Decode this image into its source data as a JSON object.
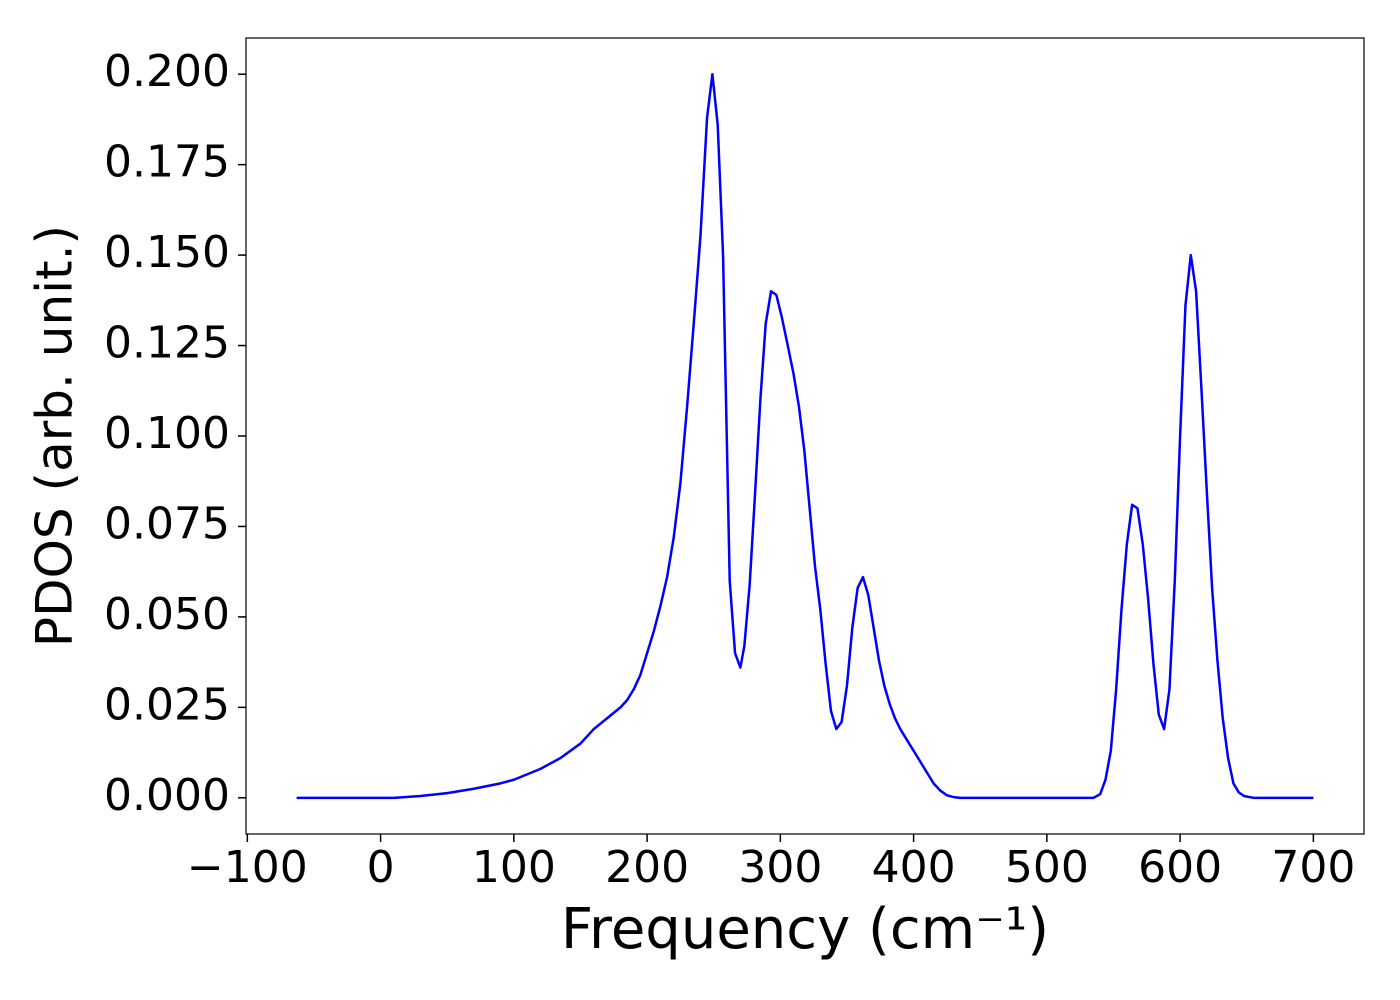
{
  "chart_data": {
    "type": "line",
    "xlabel": "Frequency (cm⁻¹)",
    "ylabel": "PDOS (arb. unit.)",
    "series": [
      {
        "color": "#0000ff",
        "x": [
          -63,
          10,
          30,
          50,
          70,
          90,
          100,
          120,
          135,
          150,
          160,
          170,
          180,
          185,
          190,
          195,
          200,
          205,
          210,
          215,
          220,
          225,
          230,
          235,
          240,
          245,
          249,
          253,
          257,
          262,
          266,
          270,
          273,
          277,
          281,
          285,
          289,
          293,
          297,
          301,
          305,
          310,
          314,
          318,
          322,
          326,
          330,
          334,
          338,
          342,
          346,
          350,
          354,
          358,
          362,
          366,
          370,
          374,
          378,
          382,
          386,
          390,
          395,
          400,
          405,
          410,
          415,
          420,
          425,
          430,
          435,
          535,
          540,
          544,
          548,
          552,
          556,
          560,
          564,
          568,
          572,
          576,
          580,
          584,
          588,
          592,
          596,
          600,
          604,
          608,
          612,
          616,
          620,
          624,
          628,
          632,
          636,
          640,
          644,
          648,
          655,
          700
        ],
        "values": [
          0,
          0,
          0.0005,
          0.0013,
          0.0025,
          0.004,
          0.005,
          0.008,
          0.011,
          0.015,
          0.019,
          0.022,
          0.025,
          0.027,
          0.03,
          0.034,
          0.04,
          0.046,
          0.053,
          0.061,
          0.072,
          0.087,
          0.108,
          0.131,
          0.155,
          0.188,
          0.2,
          0.186,
          0.15,
          0.06,
          0.04,
          0.036,
          0.042,
          0.059,
          0.084,
          0.11,
          0.131,
          0.14,
          0.139,
          0.133,
          0.126,
          0.117,
          0.108,
          0.096,
          0.08,
          0.064,
          0.052,
          0.037,
          0.024,
          0.019,
          0.021,
          0.031,
          0.047,
          0.058,
          0.061,
          0.056,
          0.047,
          0.038,
          0.031,
          0.026,
          0.022,
          0.019,
          0.016,
          0.013,
          0.01,
          0.007,
          0.004,
          0.002,
          0.0007,
          0.0002,
          0,
          0,
          0.001,
          0.005,
          0.013,
          0.03,
          0.052,
          0.07,
          0.081,
          0.08,
          0.07,
          0.055,
          0.037,
          0.023,
          0.019,
          0.03,
          0.06,
          0.1,
          0.136,
          0.15,
          0.14,
          0.113,
          0.085,
          0.058,
          0.038,
          0.022,
          0.011,
          0.004,
          0.0015,
          0.0005,
          0,
          0
        ]
      }
    ],
    "xlim": [
      -101,
      738
    ],
    "ylim": [
      -0.01,
      0.21
    ],
    "xticks": [
      {
        "value": -100,
        "label": "−100"
      },
      0,
      100,
      200,
      300,
      400,
      500,
      600,
      700
    ],
    "yticks": [
      {
        "value": 0,
        "label": "0.000"
      },
      {
        "value": 0.025,
        "label": "0.025"
      },
      {
        "value": 0.05,
        "label": "0.050"
      },
      {
        "value": 0.075,
        "label": "0.075"
      },
      {
        "value": 0.1,
        "label": "0.100"
      },
      {
        "value": 0.125,
        "label": "0.125"
      },
      {
        "value": 0.15,
        "label": "0.150"
      },
      {
        "value": 0.175,
        "label": "0.175"
      },
      {
        "value": 0.2,
        "label": "0.200"
      }
    ],
    "grid": false
  }
}
